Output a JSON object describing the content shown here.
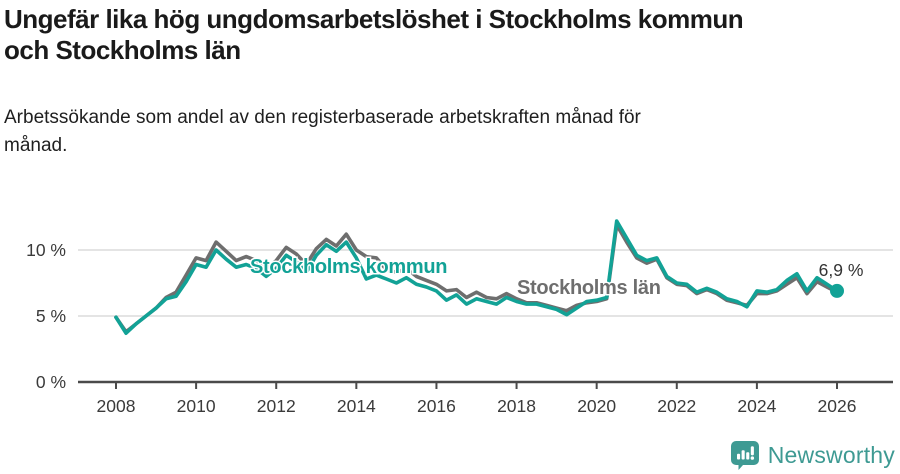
{
  "header": {
    "title": "Ungefär lika hög ungdomsarbetslöshet i Stockholms kommun och Stockholms län",
    "subtitle": "Arbetssökande som andel av den registerbaserade arbetskraften månad för månad."
  },
  "colors": {
    "kommun_line": "#12a296",
    "lan_line": "#6e6e6e",
    "grid": "#dcdcdc",
    "axis": "#4a4a4a",
    "tick_text": "#3a3a3a",
    "title_text": "#1a1a1a",
    "end_label_text": "#333333",
    "brand_teal": "#3e9a93"
  },
  "chart_data": {
    "type": "line",
    "title": "Ungefär lika hög ungdomsarbetslöshet i Stockholms kommun och Stockholms län",
    "subtitle": "Arbetssökande som andel av den registerbaserade arbetskraften månad för månad.",
    "x_unit": "decimal_year",
    "x_start": 2008.0,
    "x_step": 0.25,
    "xlim": [
      2007.0,
      2027.4
    ],
    "ylim": [
      0,
      12.5
    ],
    "grid": "horizontal-only",
    "x_ticks": [
      2008,
      2010,
      2012,
      2014,
      2016,
      2018,
      2020,
      2022,
      2024,
      2026
    ],
    "y_ticks": [
      {
        "v": 0,
        "label": "0 %"
      },
      {
        "v": 5,
        "label": "5 %"
      },
      {
        "v": 10,
        "label": "10 %"
      }
    ],
    "legend_position": "inline-labels-on-lines",
    "series": [
      {
        "name": "Stockholms län",
        "color_key": "lan_line",
        "end_dot": false,
        "values": [
          4.9,
          3.8,
          4.4,
          5.0,
          5.6,
          6.4,
          6.8,
          8.1,
          9.4,
          9.2,
          10.6,
          9.9,
          9.2,
          9.5,
          9.2,
          8.6,
          9.2,
          10.2,
          9.7,
          8.9,
          10.1,
          10.8,
          10.3,
          11.2,
          10.0,
          9.5,
          9.4,
          8.5,
          8.3,
          8.6,
          8.0,
          7.7,
          7.4,
          6.9,
          7.0,
          6.4,
          6.8,
          6.4,
          6.3,
          6.7,
          6.3,
          6.0,
          6.0,
          5.8,
          5.6,
          5.4,
          5.8,
          6.0,
          6.1,
          6.3,
          11.9,
          10.6,
          9.4,
          9.0,
          9.3,
          7.9,
          7.4,
          7.3,
          6.7,
          7.0,
          6.7,
          6.2,
          6.0,
          5.8,
          6.7,
          6.7,
          6.9,
          7.4,
          7.9,
          6.7,
          7.6,
          7.2,
          6.8
        ]
      },
      {
        "name": "Stockholms kommun",
        "color_key": "kommun_line",
        "end_dot": true,
        "values": [
          4.9,
          3.7,
          4.4,
          5.0,
          5.6,
          6.3,
          6.5,
          7.6,
          8.9,
          8.7,
          10.0,
          9.3,
          8.7,
          8.9,
          8.6,
          8.0,
          8.6,
          9.6,
          9.1,
          8.3,
          9.6,
          10.4,
          9.9,
          10.6,
          9.4,
          7.8,
          8.1,
          7.8,
          7.5,
          7.9,
          7.4,
          7.2,
          6.9,
          6.2,
          6.6,
          5.9,
          6.3,
          6.1,
          5.9,
          6.4,
          6.1,
          5.9,
          5.9,
          5.7,
          5.5,
          5.1,
          5.6,
          6.1,
          6.2,
          6.4,
          12.2,
          10.9,
          9.6,
          9.2,
          9.4,
          8.0,
          7.5,
          7.4,
          6.8,
          7.1,
          6.8,
          6.3,
          6.1,
          5.7,
          6.9,
          6.8,
          7.0,
          7.7,
          8.2,
          6.9,
          7.9,
          7.4,
          6.9
        ]
      }
    ],
    "end_label": "6,9 %",
    "end_value": 6.9
  },
  "footer": {
    "brand": "Newsworthy",
    "icon": "newsworthy-speech-bubble-bar-chart-icon"
  }
}
